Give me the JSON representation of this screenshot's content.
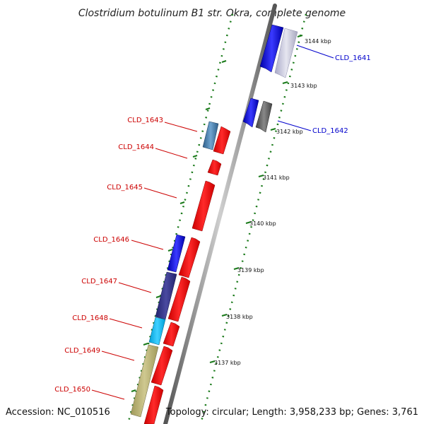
{
  "title": "Clostridium botulinum B1 str. Okra, complete genome",
  "footer": {
    "accession": "Accession: NC_010516",
    "topology": "Topology: circular; Length: 3,958,233 bp; Genes: 3,761"
  },
  "ticks": [
    {
      "label": "3144 kbp"
    },
    {
      "label": "3143 kbp"
    },
    {
      "label": "3142 kbp"
    },
    {
      "label": "3141 kbp"
    },
    {
      "label": "3140 kbp"
    },
    {
      "label": "3139 kbp"
    },
    {
      "label": "3138 kbp"
    },
    {
      "label": "3137 kbp"
    }
  ],
  "genes": [
    {
      "label": "CLD_1641",
      "strand": "forward"
    },
    {
      "label": "CLD_1642",
      "strand": "forward"
    },
    {
      "label": "CLD_1643",
      "strand": "reverse"
    },
    {
      "label": "CLD_1644",
      "strand": "reverse"
    },
    {
      "label": "CLD_1645",
      "strand": "reverse"
    },
    {
      "label": "CLD_1646",
      "strand": "reverse"
    },
    {
      "label": "CLD_1647",
      "strand": "reverse"
    },
    {
      "label": "CLD_1648",
      "strand": "reverse"
    },
    {
      "label": "CLD_1649",
      "strand": "reverse"
    },
    {
      "label": "CLD_1650",
      "strand": "reverse"
    }
  ],
  "colors": {
    "forward_label": "#0000cc",
    "reverse_label": "#cc0000",
    "tick_green": "#1a7a1a",
    "backbone": "#888888"
  }
}
